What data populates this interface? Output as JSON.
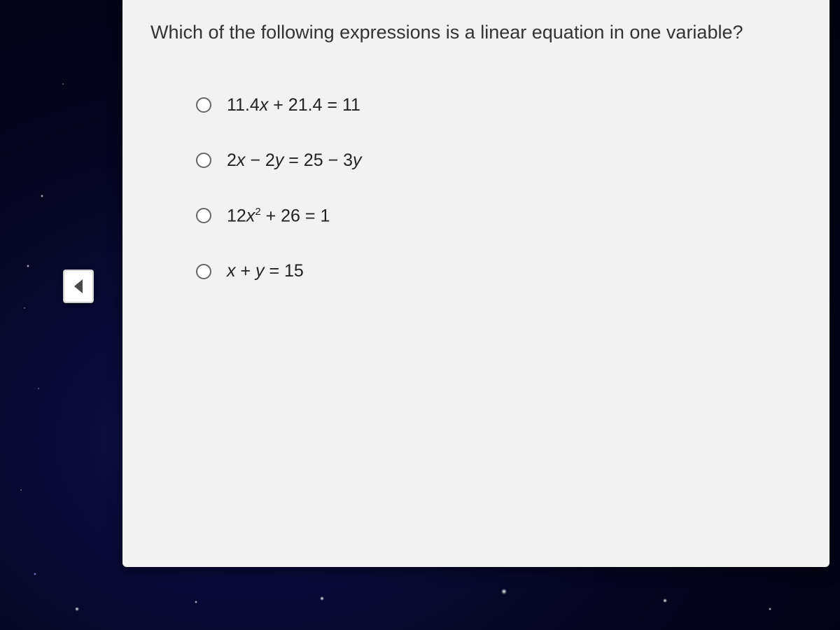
{
  "quiz": {
    "question": "Which of the following expressions is a linear equation in one variable?",
    "options": [
      {
        "html": "11.4<span class='var'>x</span> + 21.4 = 11"
      },
      {
        "html": "2<span class='var'>x</span> − 2<span class='var'>y</span> = 25 − 3<span class='var'>y</span>"
      },
      {
        "html": "12<span class='var'>x</span><sup>2</sup> + 26 = 1"
      },
      {
        "html": "<span class='var'>x</span> + <span class='var'>y</span> = 15"
      }
    ]
  },
  "nav": {
    "prev_label": "Previous"
  },
  "style": {
    "card_bg": "#f2f2f2",
    "question_fontsize": 27,
    "question_color": "#333333",
    "option_fontsize": 25,
    "option_color": "#222222",
    "radio_border_color": "#666666",
    "radio_size": 22,
    "arrow_fill": "#4a4a4a",
    "arrow_bg": "#ffffff",
    "option_spacing": 50,
    "options_indent": 65
  }
}
